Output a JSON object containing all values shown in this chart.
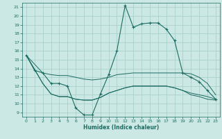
{
  "xlabel": "Humidex (Indice chaleur)",
  "xlim": [
    -0.5,
    23.5
  ],
  "ylim": [
    8.5,
    21.5
  ],
  "yticks": [
    9,
    10,
    11,
    12,
    13,
    14,
    15,
    16,
    17,
    18,
    19,
    20,
    21
  ],
  "xticks": [
    0,
    1,
    2,
    3,
    4,
    5,
    6,
    7,
    8,
    9,
    10,
    11,
    12,
    13,
    14,
    15,
    16,
    17,
    18,
    19,
    20,
    21,
    22,
    23
  ],
  "background_color": "#cce8e5",
  "grid_color": "#aacfcb",
  "line_color": "#1a6b60",
  "line1_x": [
    0,
    1,
    2,
    3,
    4,
    5,
    6,
    7,
    8,
    9,
    10,
    11,
    12,
    13,
    14,
    15,
    16,
    17,
    18,
    19,
    20,
    21,
    22,
    23
  ],
  "line1_y": [
    15.5,
    13.8,
    13.5,
    12.3,
    12.3,
    12.0,
    9.5,
    8.7,
    8.7,
    11.1,
    13.3,
    16.0,
    21.2,
    18.7,
    19.1,
    19.2,
    19.2,
    18.5,
    17.2,
    13.5,
    13.0,
    12.5,
    11.5,
    10.5
  ],
  "line2_x": [
    0,
    2,
    3,
    4,
    5,
    6,
    7,
    8,
    9,
    10,
    11,
    12,
    13,
    14,
    15,
    16,
    17,
    18,
    19,
    20,
    21,
    22,
    23
  ],
  "line2_y": [
    15.5,
    13.5,
    13.3,
    13.2,
    13.2,
    13.0,
    12.8,
    12.7,
    12.8,
    13.0,
    13.3,
    13.4,
    13.5,
    13.5,
    13.5,
    13.5,
    13.5,
    13.5,
    13.5,
    13.4,
    13.0,
    12.3,
    11.0
  ],
  "line3_x": [
    0,
    2,
    3,
    4,
    5,
    6,
    7,
    8,
    9,
    10,
    11,
    12,
    13,
    14,
    15,
    16,
    17,
    18,
    19,
    20,
    21,
    22,
    23
  ],
  "line3_y": [
    15.5,
    12.3,
    11.1,
    10.8,
    10.8,
    10.5,
    10.4,
    10.4,
    10.7,
    11.2,
    11.5,
    11.8,
    12.0,
    12.0,
    12.0,
    12.0,
    12.0,
    11.8,
    11.5,
    11.2,
    11.0,
    10.8,
    10.5
  ],
  "line4_x": [
    0,
    2,
    3,
    4,
    5,
    6,
    7,
    8,
    9,
    10,
    11,
    12,
    13,
    14,
    15,
    16,
    17,
    18,
    19,
    20,
    21,
    22,
    23
  ],
  "line4_y": [
    15.5,
    12.3,
    11.1,
    10.8,
    10.8,
    10.5,
    10.4,
    10.4,
    10.7,
    11.2,
    11.5,
    11.8,
    12.0,
    12.0,
    12.0,
    12.0,
    12.0,
    11.8,
    11.5,
    11.0,
    10.8,
    10.5,
    10.4
  ]
}
